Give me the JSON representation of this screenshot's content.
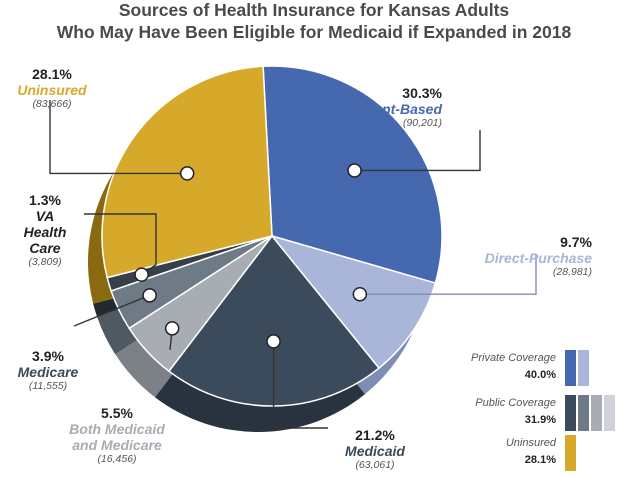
{
  "title": "Sources of Health Insurance for Kansas Adults",
  "subtitle": "Who May Have Been Eligible for Medicaid if Expanded in 2018",
  "chart_data": {
    "type": "pie",
    "title": "Sources of Health Insurance for Kansas Adults",
    "subtitle": "Who May Have Been Eligible for Medicaid if Expanded in 2018",
    "slices": [
      {
        "name": "Employment-Based",
        "percent": 30.3,
        "percent_label": "30.3%",
        "count_label": "(90,201)",
        "color": "#4668ae",
        "side_color": "#2f4a80",
        "label_color": "#4668ae"
      },
      {
        "name": "Direct-Purchase",
        "percent": 9.7,
        "percent_label": "9.7%",
        "count_label": "(28,981)",
        "color": "#a9b5d9",
        "side_color": "#7f8db5",
        "label_color": "#a9b5d9"
      },
      {
        "name": "Medicaid",
        "percent": 21.2,
        "percent_label": "21.2%",
        "count_label": "(63,061)",
        "color": "#3c4b5b",
        "side_color": "#28333f",
        "label_color": "#3c4b5b"
      },
      {
        "name": "Both Medicaid and Medicare",
        "percent": 5.5,
        "percent_label": "5.5%",
        "count_label": "(16,456)",
        "color": "#a7adb3",
        "side_color": "#7b8187",
        "label_color": "#a7adb3"
      },
      {
        "name": "Medicare",
        "percent": 3.9,
        "percent_label": "3.9%",
        "count_label": "(11,555)",
        "color": "#6e7a85",
        "side_color": "#4f5962",
        "label_color": "#3c4b5b"
      },
      {
        "name": "VA Health Care",
        "percent": 1.3,
        "percent_label": "1.3%",
        "count_label": "(3,809)",
        "color": "#37404a",
        "side_color": "#22282f",
        "label_color": "#222222"
      },
      {
        "name": "Uninsured",
        "percent": 28.1,
        "percent_label": "28.1%",
        "count_label": "(83,666)",
        "color": "#d6a92a",
        "side_color": "#8a6a10",
        "label_color": "#d6a92a"
      }
    ],
    "legend": [
      {
        "name": "Private Coverage",
        "percent_label": "40.0%",
        "swatches": [
          "#4668ae",
          "#a9b5d9"
        ]
      },
      {
        "name": "Public Coverage",
        "percent_label": "31.9%",
        "swatches": [
          "#3c4b5b",
          "#6e7a85",
          "#a7adb3",
          "#cfd3d8"
        ]
      },
      {
        "name": "Uninsured",
        "percent_label": "28.1%",
        "swatches": [
          "#d6a92a"
        ]
      }
    ],
    "legend_position": "bottom-right"
  }
}
